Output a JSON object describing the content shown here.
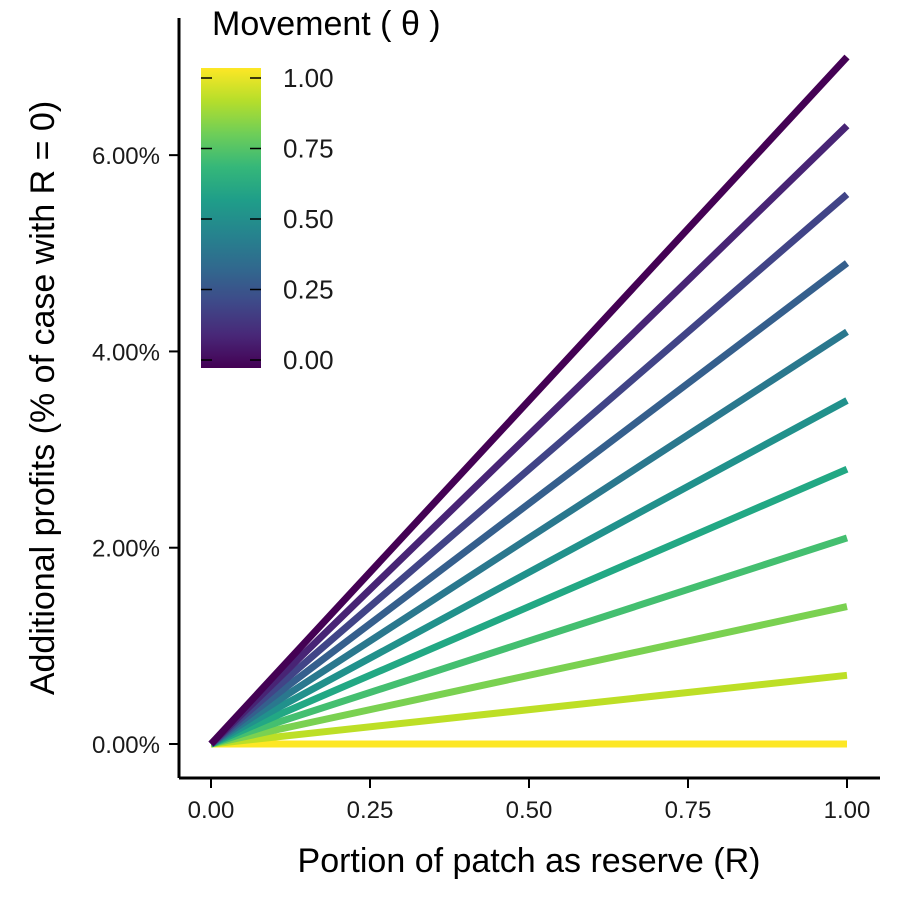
{
  "chart_data": {
    "type": "line",
    "xlabel": "Portion of patch as reserve (R)",
    "ylabel": "Additional profits (% of case with R = 0)",
    "xlim": [
      -0.05,
      1.05
    ],
    "ylim": [
      -0.35,
      7.3
    ],
    "x_ticks": [
      0,
      0.25,
      0.5,
      0.75,
      1
    ],
    "x_tick_labels": [
      "0.00",
      "0.25",
      "0.50",
      "0.75",
      "1.00"
    ],
    "y_ticks": [
      0,
      2,
      4,
      6
    ],
    "y_tick_labels": [
      "0.00%",
      "2.00%",
      "4.00%",
      "6.00%"
    ],
    "grid": false,
    "legend": {
      "title": "Movement ( θ )",
      "placement": "top-left",
      "type": "colorbar",
      "ticks": [
        0,
        0.25,
        0.5,
        0.75,
        1
      ],
      "tick_labels": [
        "0.00",
        "0.25",
        "0.50",
        "0.75",
        "1.00"
      ],
      "colors": [
        "#440154",
        "#482878",
        "#3e4a89",
        "#31688e",
        "#26828e",
        "#1f9e89",
        "#35b779",
        "#6ece58",
        "#b5de2b",
        "#fde725"
      ]
    },
    "series": [
      {
        "theta": 0.0,
        "color": "#440154",
        "x": [
          0,
          1
        ],
        "y": [
          0,
          7.0
        ]
      },
      {
        "theta": 0.1,
        "color": "#482475",
        "x": [
          0,
          1
        ],
        "y": [
          0,
          6.3
        ]
      },
      {
        "theta": 0.2,
        "color": "#414487",
        "x": [
          0,
          1
        ],
        "y": [
          0,
          5.6
        ]
      },
      {
        "theta": 0.3,
        "color": "#355f8d",
        "x": [
          0,
          1
        ],
        "y": [
          0,
          4.9
        ]
      },
      {
        "theta": 0.4,
        "color": "#2a788e",
        "x": [
          0,
          1
        ],
        "y": [
          0,
          4.2
        ]
      },
      {
        "theta": 0.5,
        "color": "#21918c",
        "x": [
          0,
          1
        ],
        "y": [
          0,
          3.5
        ]
      },
      {
        "theta": 0.6,
        "color": "#22a884",
        "x": [
          0,
          1
        ],
        "y": [
          0,
          2.8
        ]
      },
      {
        "theta": 0.7,
        "color": "#44bf70",
        "x": [
          0,
          1
        ],
        "y": [
          0,
          2.1
        ]
      },
      {
        "theta": 0.8,
        "color": "#7ad151",
        "x": [
          0,
          1
        ],
        "y": [
          0,
          1.4
        ]
      },
      {
        "theta": 0.9,
        "color": "#bddf26",
        "x": [
          0,
          1
        ],
        "y": [
          0,
          0.7
        ]
      },
      {
        "theta": 1.0,
        "color": "#fde725",
        "x": [
          0,
          1
        ],
        "y": [
          0,
          0.0
        ]
      }
    ]
  }
}
